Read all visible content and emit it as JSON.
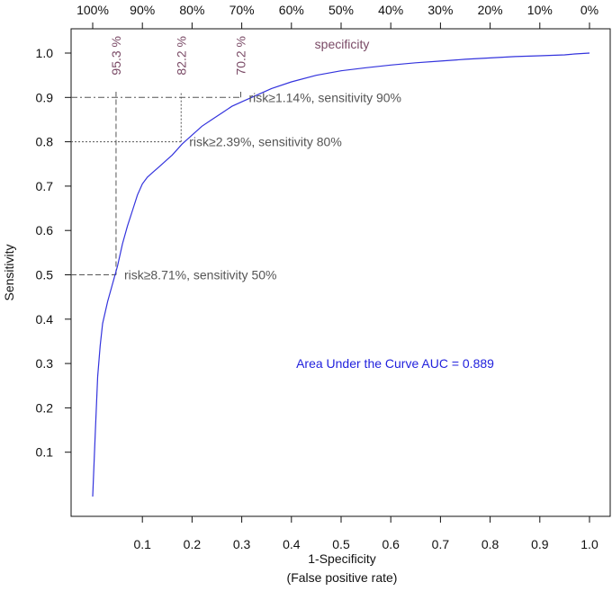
{
  "chart_data": {
    "type": "line",
    "title": "",
    "xlabel": "1-Specificity",
    "xlabel2": "(False positive rate)",
    "ylabel": "Sensitivity",
    "xlim": [
      0,
      1
    ],
    "ylim": [
      0,
      1
    ],
    "grid": false,
    "x_ticks": [
      0.1,
      0.2,
      0.3,
      0.4,
      0.5,
      0.6,
      0.7,
      0.8,
      0.9,
      1.0
    ],
    "x_tick_labels": [
      "0.1",
      "0.2",
      "0.3",
      "0.4",
      "0.5",
      "0.6",
      "0.7",
      "0.8",
      "0.9",
      "1.0"
    ],
    "y_ticks": [
      0.1,
      0.2,
      0.3,
      0.4,
      0.5,
      0.6,
      0.7,
      0.8,
      0.9,
      1.0
    ],
    "y_tick_labels": [
      "0.1",
      "0.2",
      "0.3",
      "0.4",
      "0.5",
      "0.6",
      "0.7",
      "0.8",
      "0.9",
      "1.0"
    ],
    "top_axis": {
      "title": "specificity",
      "ticks": [
        0.0,
        0.1,
        0.2,
        0.3,
        0.4,
        0.5,
        0.6,
        0.7,
        0.8,
        0.9,
        1.0
      ],
      "tick_labels": [
        "100%",
        "90%",
        "80%",
        "70%",
        "60%",
        "50%",
        "40%",
        "30%",
        "20%",
        "10%",
        "0%"
      ]
    },
    "series": [
      {
        "color": "#3333dd",
        "x": [
          0.0,
          0.005,
          0.01,
          0.015,
          0.02,
          0.03,
          0.04,
          0.05,
          0.06,
          0.07,
          0.08,
          0.09,
          0.1,
          0.11,
          0.12,
          0.13,
          0.14,
          0.15,
          0.16,
          0.18,
          0.2,
          0.22,
          0.24,
          0.26,
          0.28,
          0.3,
          0.33,
          0.36,
          0.4,
          0.45,
          0.5,
          0.55,
          0.6,
          0.65,
          0.7,
          0.75,
          0.8,
          0.85,
          0.9,
          0.95,
          0.97,
          1.0
        ],
        "y": [
          0.0,
          0.14,
          0.27,
          0.34,
          0.39,
          0.44,
          0.48,
          0.52,
          0.57,
          0.61,
          0.645,
          0.68,
          0.705,
          0.72,
          0.73,
          0.74,
          0.75,
          0.76,
          0.77,
          0.795,
          0.815,
          0.835,
          0.85,
          0.865,
          0.88,
          0.89,
          0.905,
          0.92,
          0.935,
          0.95,
          0.96,
          0.967,
          0.973,
          0.978,
          0.982,
          0.986,
          0.989,
          0.992,
          0.994,
          0.996,
          0.998,
          1.0
        ]
      }
    ],
    "cutoffs": [
      {
        "fpr": 0.047,
        "sensitivity": 0.5,
        "specificity_label": "95.3 %",
        "label": "risk≥8.71%, sensitivity 50%"
      },
      {
        "fpr": 0.178,
        "sensitivity": 0.8,
        "specificity_label": "82.2 %",
        "label": "risk≥2.39%, sensitivity 80%"
      },
      {
        "fpr": 0.298,
        "sensitivity": 0.9,
        "specificity_label": "70.2 %",
        "label": "risk≥1.14%, sensitivity 90%"
      }
    ],
    "annotations": [
      {
        "text": "Area Under the Curve AUC = 0.889",
        "x": 0.5,
        "y": 0.3,
        "color": "#2222dd"
      }
    ]
  }
}
